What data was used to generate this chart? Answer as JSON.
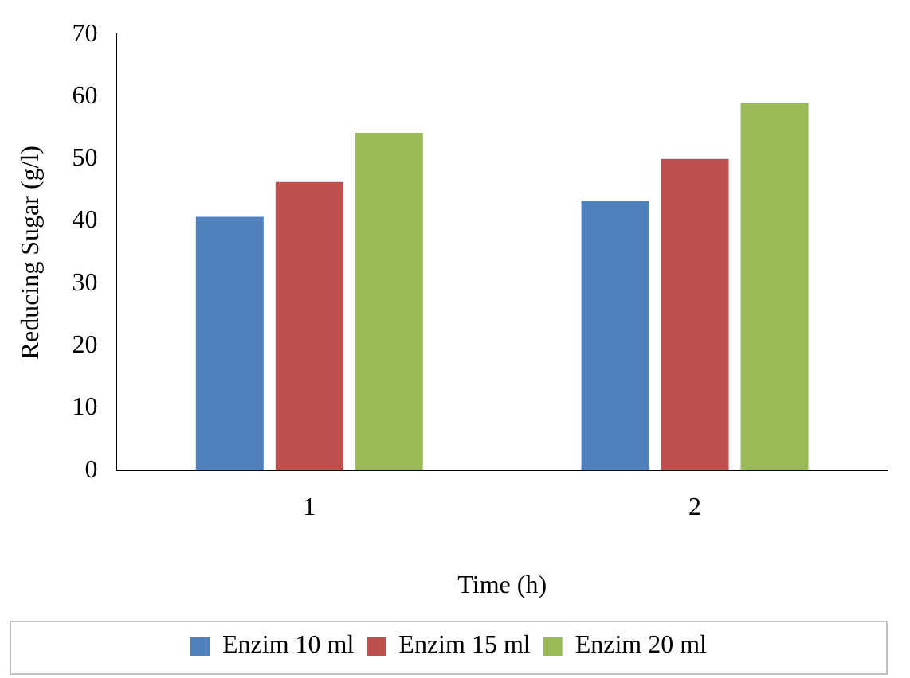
{
  "chart_data": {
    "type": "bar",
    "xlabel": "Time (h)",
    "ylabel": "Reducing Sugar (g/l)",
    "categories": [
      "1",
      "2"
    ],
    "series": [
      {
        "name": "Enzim 10 ml",
        "color": "#4f81bd",
        "values": [
          40.7,
          43.3
        ]
      },
      {
        "name": "Enzim 15 ml",
        "color": "#c0504d",
        "values": [
          46.3,
          50
        ]
      },
      {
        "name": "Enzim 20 ml",
        "color": "#9bbb59",
        "values": [
          54.2,
          59
        ]
      }
    ],
    "ylim": [
      0,
      70
    ],
    "yticks": [
      0,
      10,
      20,
      30,
      40,
      50,
      60,
      70
    ],
    "grid": false,
    "legend": "bottom"
  }
}
